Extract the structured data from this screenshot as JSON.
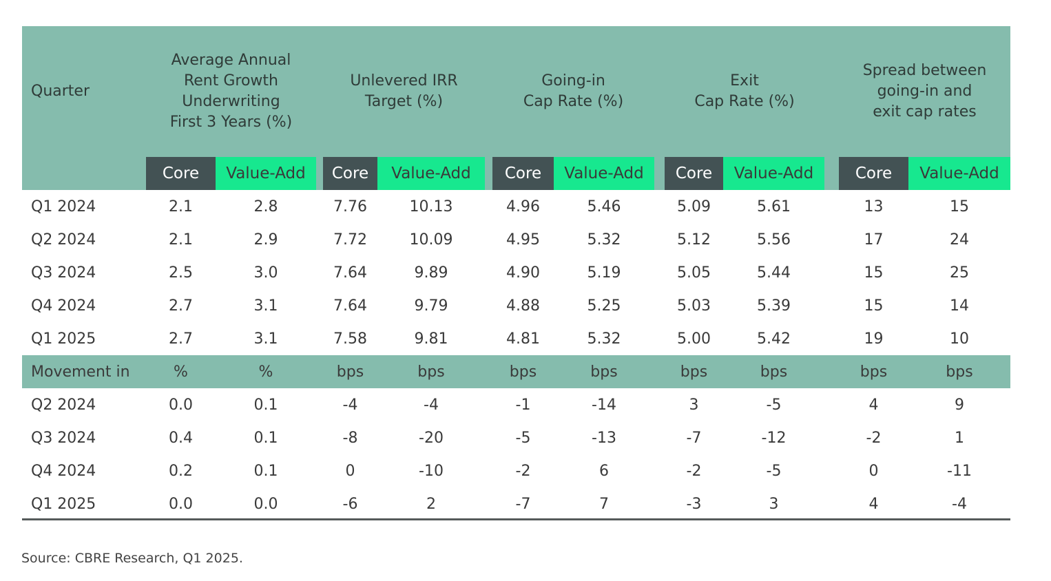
{
  "chart_data": {
    "type": "table",
    "first_column_header": "Quarter",
    "groups": [
      {
        "title": "Average Annual\nRent Growth\nUnderwriting\nFirst 3 Years (%)",
        "sub": [
          "Core",
          "Value-Add"
        ]
      },
      {
        "title": "Unlevered IRR\nTarget (%)",
        "sub": [
          "Core",
          "Value-Add"
        ]
      },
      {
        "title": "Going-in\nCap Rate (%)",
        "sub": [
          "Core",
          "Value-Add"
        ]
      },
      {
        "title": "Exit\nCap Rate (%)",
        "sub": [
          "Core",
          "Value-Add"
        ]
      },
      {
        "title": "Spread between\ngoing-in and\nexit cap rates",
        "sub": [
          "Core",
          "Value-Add"
        ]
      }
    ],
    "rows": [
      {
        "label": "Q1 2024",
        "values": [
          "2.1",
          "2.8",
          "7.76",
          "10.13",
          "4.96",
          "5.46",
          "5.09",
          "5.61",
          "13",
          "15"
        ]
      },
      {
        "label": "Q2 2024",
        "values": [
          "2.1",
          "2.9",
          "7.72",
          "10.09",
          "4.95",
          "5.32",
          "5.12",
          "5.56",
          "17",
          "24"
        ]
      },
      {
        "label": "Q3 2024",
        "values": [
          "2.5",
          "3.0",
          "7.64",
          "9.89",
          "4.90",
          "5.19",
          "5.05",
          "5.44",
          "15",
          "25"
        ]
      },
      {
        "label": "Q4 2024",
        "values": [
          "2.7",
          "3.1",
          "7.64",
          "9.79",
          "4.88",
          "5.25",
          "5.03",
          "5.39",
          "15",
          "14"
        ]
      },
      {
        "label": "Q1 2025",
        "values": [
          "2.7",
          "3.1",
          "7.58",
          "9.81",
          "4.81",
          "5.32",
          "5.00",
          "5.42",
          "19",
          "10"
        ]
      },
      {
        "label": "Movement in",
        "values": [
          "%",
          "%",
          "bps",
          "bps",
          "bps",
          "bps",
          "bps",
          "bps",
          "bps",
          "bps"
        ],
        "kind": "movement"
      },
      {
        "label": "Q2 2024",
        "values": [
          "0.0",
          "0.1",
          "-4",
          "-4",
          "-1",
          "-14",
          "3",
          "-5",
          "4",
          "9"
        ]
      },
      {
        "label": "Q3 2024",
        "values": [
          "0.4",
          "0.1",
          "-8",
          "-20",
          "-5",
          "-13",
          "-7",
          "-12",
          "-2",
          "1"
        ]
      },
      {
        "label": "Q4 2024",
        "values": [
          "0.2",
          "0.1",
          "0",
          "-10",
          "-2",
          "6",
          "-2",
          "-5",
          "0",
          "-11"
        ]
      },
      {
        "label": "Q1 2025",
        "values": [
          "0.0",
          "0.0",
          "-6",
          "2",
          "-7",
          "7",
          "-3",
          "3",
          "4",
          "-4"
        ]
      }
    ],
    "colors": {
      "header": "#85bcad",
      "core": "#435254",
      "value_add": "#17e88f",
      "rule": "#555a5a"
    }
  },
  "source": "Source: CBRE Research, Q1 2025."
}
